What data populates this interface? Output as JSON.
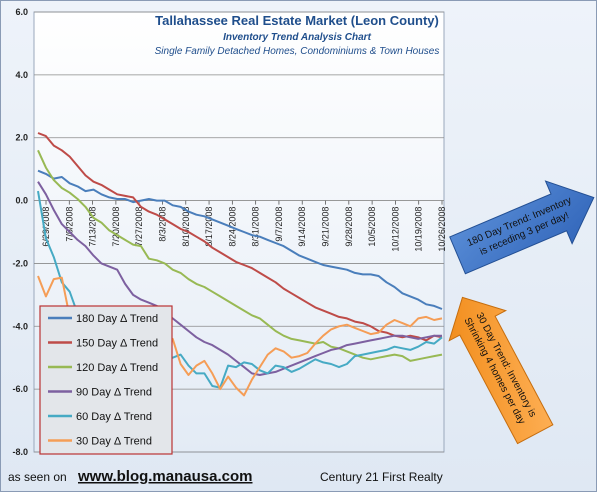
{
  "chart_data": {
    "type": "line",
    "title": "Tallahassee Real Estate Market (Leon County)",
    "subtitle": "Inventory Trend Analysis Chart",
    "subtitle2": "Single Family Detached Homes, Condominiums & Town Houses",
    "ylim": [
      -8.0,
      6.0
    ],
    "yticks": [
      "6.0",
      "4.0",
      "2.0",
      "0.0",
      "-2.0",
      "-4.0",
      "-6.0",
      "-8.0"
    ],
    "xticks": [
      "6/29/2008",
      "7/6/2008",
      "7/13/2008",
      "7/20/2008",
      "7/27/2008",
      "8/3/2008",
      "8/10/2008",
      "8/17/2008",
      "8/24/2008",
      "8/31/2008",
      "9/7/2008",
      "9/14/2008",
      "9/21/2008",
      "9/28/2008",
      "10/5/2008",
      "10/12/2008",
      "10/19/2008",
      "10/26/2008"
    ],
    "grid": true,
    "legend_position": "bottom-left",
    "series": [
      {
        "name": "180 Day Δ Trend",
        "color": "#4a7ebb",
        "values": [
          0.95,
          0.85,
          0.7,
          0.75,
          0.55,
          0.45,
          0.3,
          0.35,
          0.2,
          0.1,
          0.05,
          0.05,
          -0.05,
          0.0,
          0.05,
          0.0,
          0.0,
          -0.15,
          -0.2,
          -0.35,
          -0.45,
          -0.5,
          -0.6,
          -0.7,
          -0.8,
          -0.9,
          -1.0,
          -1.1,
          -1.15,
          -1.25,
          -1.35,
          -1.45,
          -1.6,
          -1.75,
          -1.85,
          -1.95,
          -2.05,
          -2.1,
          -2.15,
          -2.2,
          -2.3,
          -2.35,
          -2.35,
          -2.4,
          -2.6,
          -2.75,
          -2.95,
          -3.05,
          -3.15,
          -3.3,
          -3.35,
          -3.45
        ]
      },
      {
        "name": "150 Day Δ Trend",
        "color": "#be4b48",
        "values": [
          2.15,
          2.05,
          1.75,
          1.6,
          1.4,
          1.1,
          0.8,
          0.6,
          0.5,
          0.35,
          0.2,
          0.15,
          0.1,
          -0.2,
          -0.35,
          -0.45,
          -0.6,
          -0.75,
          -0.9,
          -1.0,
          -1.15,
          -1.3,
          -1.5,
          -1.65,
          -1.8,
          -1.95,
          -2.05,
          -2.15,
          -2.3,
          -2.45,
          -2.6,
          -2.8,
          -2.95,
          -3.1,
          -3.25,
          -3.4,
          -3.5,
          -3.6,
          -3.7,
          -3.75,
          -3.85,
          -3.9,
          -4.0,
          -4.15,
          -4.2,
          -4.3,
          -4.35,
          -4.3,
          -4.35,
          -4.45,
          -4.3,
          -4.35
        ]
      },
      {
        "name": "120 Day Δ Trend",
        "color": "#98b954",
        "values": [
          1.6,
          1.05,
          0.65,
          0.4,
          0.25,
          0.05,
          -0.2,
          -0.55,
          -0.7,
          -0.95,
          -1.1,
          -1.25,
          -1.4,
          -1.45,
          -1.85,
          -1.9,
          -2.0,
          -2.2,
          -2.3,
          -2.5,
          -2.65,
          -2.75,
          -2.9,
          -3.05,
          -3.2,
          -3.35,
          -3.5,
          -3.65,
          -3.75,
          -3.95,
          -4.15,
          -4.3,
          -4.4,
          -4.45,
          -4.5,
          -4.55,
          -4.5,
          -4.65,
          -4.7,
          -4.8,
          -4.9,
          -5.0,
          -5.05,
          -5.0,
          -4.95,
          -4.9,
          -4.95,
          -5.1,
          -5.05,
          -5.0,
          -4.95,
          -4.9
        ]
      },
      {
        "name": "90 Day Δ Trend",
        "color": "#7d60a0",
        "values": [
          0.6,
          0.2,
          -0.3,
          -0.75,
          -1.0,
          -1.25,
          -1.45,
          -1.75,
          -2.0,
          -2.1,
          -2.2,
          -2.65,
          -3.0,
          -3.15,
          -3.25,
          -3.35,
          -3.55,
          -3.75,
          -3.95,
          -4.15,
          -4.35,
          -4.5,
          -4.6,
          -4.75,
          -4.9,
          -5.1,
          -5.3,
          -5.5,
          -5.55,
          -5.5,
          -5.45,
          -5.35,
          -5.25,
          -5.15,
          -5.05,
          -4.95,
          -4.85,
          -4.75,
          -4.7,
          -4.6,
          -4.55,
          -4.5,
          -4.45,
          -4.4,
          -4.35,
          -4.3,
          -4.3,
          -4.35,
          -4.4,
          -4.35,
          -4.3,
          -4.3
        ]
      },
      {
        "name": "60 Day Δ Trend",
        "color": "#46aac4",
        "values": [
          0.3,
          -1.2,
          -1.8,
          -2.6,
          -2.9,
          -3.6,
          -4.1,
          -3.7,
          -4.2,
          -4.1,
          -4.4,
          -5.0,
          -5.3,
          -5.35,
          -5.05,
          -5.3,
          -5.1,
          -5.0,
          -4.9,
          -5.25,
          -5.5,
          -5.5,
          -5.9,
          -5.95,
          -5.25,
          -5.3,
          -5.15,
          -5.2,
          -5.4,
          -5.5,
          -5.25,
          -5.3,
          -5.45,
          -5.35,
          -5.2,
          -5.05,
          -5.15,
          -5.2,
          -5.3,
          -5.2,
          -4.95,
          -4.9,
          -4.85,
          -4.8,
          -4.75,
          -4.65,
          -4.7,
          -4.75,
          -4.65,
          -4.5,
          -4.55,
          -4.35
        ]
      },
      {
        "name": "30 Day Δ Trend",
        "color": "#f59d56",
        "values": [
          -2.4,
          -3.05,
          -2.5,
          -2.45,
          -3.7,
          -4.8,
          -4.55,
          -4.3,
          -4.0,
          -4.1,
          -3.85,
          -4.3,
          -4.75,
          -4.65,
          -4.3,
          -4.55,
          -4.65,
          -4.4,
          -5.2,
          -5.55,
          -5.25,
          -5.1,
          -5.5,
          -6.0,
          -5.6,
          -5.95,
          -6.2,
          -5.7,
          -5.3,
          -4.9,
          -4.7,
          -4.8,
          -5.0,
          -4.95,
          -4.85,
          -4.55,
          -4.3,
          -4.1,
          -4.0,
          -3.95,
          -4.05,
          -4.15,
          -4.25,
          -4.2,
          -3.95,
          -3.8,
          -3.9,
          -4.0,
          -3.75,
          -3.7,
          -3.8,
          -3.75
        ]
      }
    ]
  },
  "footer": {
    "left_text": "as seen on",
    "url": "www.blog.manausa.com",
    "right_text": "Century 21 First Realty"
  },
  "annotations": {
    "blue_arrow_text": [
      "180 Day Trend: Inventory",
      "is receding 3 per day!"
    ],
    "orange_arrow_text": [
      "30 Day Trend: Inventory is",
      "Shrinking 4 homes per day"
    ]
  }
}
